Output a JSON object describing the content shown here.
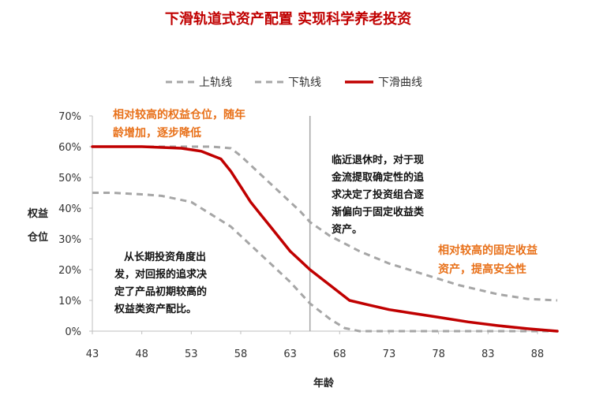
{
  "chart_data": {
    "type": "line",
    "title": "下滑轨道式资产配置 实现科学养老投资",
    "xlabel": "年龄",
    "ylabel": [
      "权益",
      "仓位"
    ],
    "xlim": [
      43,
      90
    ],
    "ylim": [
      0,
      70
    ],
    "x_ticks": [
      "43",
      "48",
      "53",
      "58",
      "63",
      "68",
      "73",
      "78",
      "83",
      "88"
    ],
    "y_ticks": [
      "0%",
      "10%",
      "20%",
      "30%",
      "40%",
      "50%",
      "60%",
      "70%"
    ],
    "grid": false,
    "legend_position": "top",
    "vline_x": 65,
    "series": [
      {
        "name": "上轨线",
        "style": "dashed",
        "color": "#a6a6a6",
        "x": [
          43,
          46,
          50,
          53,
          55,
          57,
          58,
          60,
          62,
          64,
          65,
          67,
          70,
          73,
          76,
          80,
          84,
          87,
          90
        ],
        "y": [
          60,
          60,
          60,
          60,
          60,
          59.5,
          57,
          51,
          45,
          39,
          35.5,
          31,
          26,
          22,
          19,
          15,
          12,
          10.5,
          10
        ]
      },
      {
        "name": "下轨线",
        "style": "dashed",
        "color": "#a6a6a6",
        "x": [
          43,
          45,
          48,
          50,
          53,
          55,
          57,
          59,
          61,
          63,
          65,
          67,
          68.5,
          70,
          75,
          80,
          85,
          90
        ],
        "y": [
          45,
          45,
          44.5,
          44,
          42,
          38,
          34,
          28,
          22,
          16,
          9,
          4,
          1,
          0,
          0,
          0,
          0,
          0
        ]
      },
      {
        "name": "下滑曲线",
        "style": "solid",
        "color": "#c00000",
        "x": [
          43,
          48,
          52,
          54,
          56,
          57,
          58,
          59,
          60,
          61,
          62,
          63,
          64,
          65,
          67,
          69,
          71,
          73,
          75,
          78,
          81,
          84,
          87,
          90
        ],
        "y": [
          60,
          60,
          59.5,
          58.5,
          56,
          52,
          47,
          42,
          38,
          34,
          30,
          26,
          23,
          20,
          15,
          10,
          8.5,
          7,
          6,
          4.5,
          3,
          1.8,
          0.8,
          0
        ]
      }
    ],
    "annotations": [
      {
        "lines": [
          "相对较高的权益仓位，随年",
          "龄增加，逐步降低"
        ],
        "color": "#e8711a"
      },
      {
        "lines": [
          "临近退休时，对于现",
          "金流提取确定性的追",
          "求决定了投资组合逐",
          "渐偏向于固定收益类",
          "资产。"
        ],
        "color": "#111111"
      },
      {
        "lines": [
          "从长期投资角度出",
          "发，对回报的追求决",
          "定了产品初期较高的",
          "权益类资产配比。"
        ],
        "color": "#111111"
      },
      {
        "lines": [
          "相对较高的固定收益",
          "资产，提高安全性"
        ],
        "color": "#e8711a"
      }
    ]
  }
}
